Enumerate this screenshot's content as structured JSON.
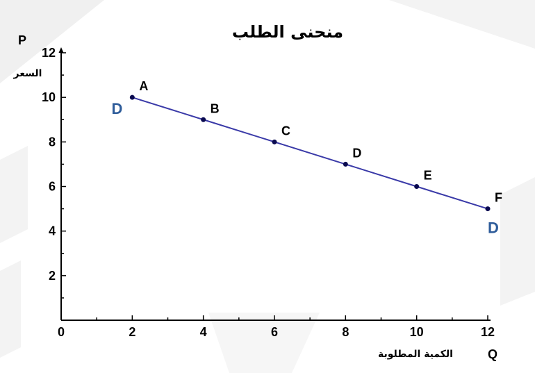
{
  "chart_data": {
    "type": "line",
    "title": "منحنى الطلب",
    "x_axis": {
      "symbol": "Q",
      "label": "الكمية المطلوبة",
      "range": [
        0,
        12
      ],
      "ticks": [
        0,
        2,
        4,
        6,
        8,
        10,
        12
      ],
      "tick_labels": [
        "0",
        "2",
        "4",
        "6",
        "8",
        "10",
        "12"
      ]
    },
    "y_axis": {
      "symbol": "P",
      "label": "السعر",
      "range": [
        0,
        12
      ],
      "ticks": [
        2,
        4,
        6,
        8,
        10,
        12
      ],
      "tick_labels": [
        "2",
        "4",
        "6",
        "8",
        "10",
        "12"
      ]
    },
    "grid": false,
    "series": [
      {
        "points": [
          {
            "label": "A",
            "x": 2,
            "y": 10
          },
          {
            "label": "B",
            "x": 4,
            "y": 9
          },
          {
            "label": "C",
            "x": 6,
            "y": 8
          },
          {
            "label": "D",
            "x": 8,
            "y": 7
          },
          {
            "label": "E",
            "x": 10,
            "y": 6
          },
          {
            "label": "F",
            "x": 12,
            "y": 5
          }
        ]
      }
    ],
    "curve_labels": [
      "D",
      "D"
    ],
    "colors": {
      "line": "#3a3aa8",
      "point": "#0a0a50",
      "curve_label": "#2e5c9a",
      "axis": "#000000"
    }
  }
}
